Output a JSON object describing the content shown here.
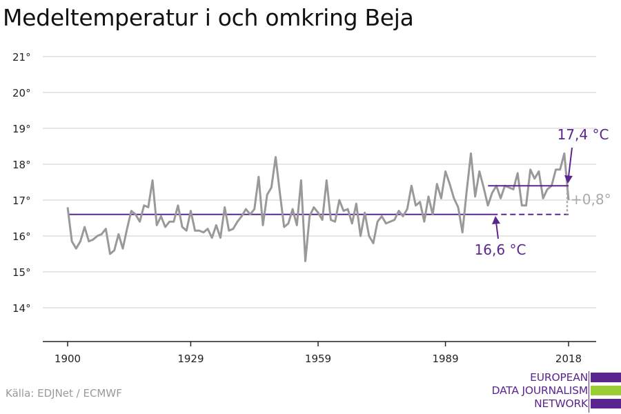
{
  "title": "Medeltemperatur i och omkring Beja",
  "source": "Källa: EDJNet / ECMWF",
  "logo": {
    "line1": "EUROPEAN",
    "line2": "DATA JOURNALISM",
    "line3": "NETWORK"
  },
  "colors": {
    "line": "#999999",
    "accent": "#5b2590",
    "grid": "#dddddd",
    "green": "#9acd32"
  },
  "chart_data": {
    "type": "line",
    "title": "Medeltemperatur i och omkring Beja",
    "xlabel": "",
    "ylabel": "",
    "x_start": 1900,
    "x_ticks": [
      1900,
      1929,
      1959,
      1989,
      2018
    ],
    "y_ticks": [
      14,
      15,
      16,
      17,
      18,
      19,
      20,
      21
    ],
    "y_tick_labels": [
      "14°",
      "15°",
      "16°",
      "17°",
      "18°",
      "19°",
      "20°",
      "21°"
    ],
    "ylim": [
      13.05,
      21
    ],
    "xlim": [
      1900,
      2019
    ],
    "series": [
      {
        "name": "Medeltemperatur",
        "values": [
          16.8,
          15.85,
          15.65,
          15.85,
          16.25,
          15.85,
          15.9,
          16.0,
          16.05,
          16.2,
          15.5,
          15.6,
          16.05,
          15.65,
          16.2,
          16.7,
          16.6,
          16.4,
          16.85,
          16.8,
          17.55,
          16.3,
          16.55,
          16.25,
          16.4,
          16.4,
          16.85,
          16.25,
          16.15,
          16.7,
          16.15,
          16.15,
          16.1,
          16.2,
          15.95,
          16.3,
          15.95,
          16.8,
          16.15,
          16.2,
          16.4,
          16.55,
          16.75,
          16.6,
          16.75,
          17.65,
          16.3,
          17.15,
          17.35,
          18.2,
          17.2,
          16.25,
          16.35,
          16.75,
          16.3,
          17.55,
          15.3,
          16.55,
          16.8,
          16.65,
          16.45,
          17.55,
          16.45,
          16.4,
          17.0,
          16.7,
          16.75,
          16.35,
          16.9,
          16.0,
          16.65,
          16.0,
          15.8,
          16.4,
          16.55,
          16.35,
          16.4,
          16.45,
          16.7,
          16.55,
          16.75,
          17.4,
          16.85,
          16.95,
          16.4,
          17.1,
          16.6,
          17.45,
          17.05,
          17.8,
          17.45,
          17.05,
          16.8,
          16.1,
          17.25,
          18.3,
          17.1,
          17.8,
          17.35,
          16.85,
          17.2,
          17.4,
          17.05,
          17.4,
          17.35,
          17.3,
          17.75,
          16.85,
          16.85,
          17.85,
          17.6,
          17.8,
          17.05,
          17.3,
          17.4,
          17.85,
          17.85,
          18.3,
          17.0
        ]
      }
    ],
    "baseline": {
      "value": 16.6,
      "from": 1900,
      "solid_to": 2000,
      "to": 2018,
      "label": "16,6 °C"
    },
    "recent": {
      "value": 17.4,
      "from": 2000,
      "to": 2018,
      "label": "17,4 °C"
    },
    "difference_label": "+0,8°"
  }
}
